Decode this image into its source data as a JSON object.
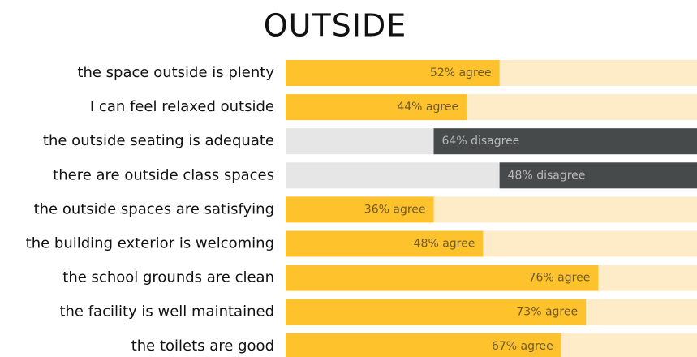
{
  "chart_data": {
    "type": "bar",
    "orientation": "horizontal",
    "title": "OUTSIDE",
    "categories": [
      "the space outside is plenty",
      "I can feel relaxed outside",
      "the outside seating is adequate",
      "there are outside class spaces",
      "the outside spaces are satisfying",
      "the building exterior is welcoming",
      "the school grounds are clean",
      "the facility is well maintained",
      "the toilets are good"
    ],
    "xlim": [
      0,
      100
    ],
    "series": [
      {
        "align": "left",
        "color": "#fec22d",
        "track_color": "#feebc8",
        "label_color": "#6e5a2a",
        "values": [
          52,
          44,
          null,
          null,
          36,
          48,
          76,
          73,
          67
        ],
        "value_labels": [
          "52% agree",
          "44% agree",
          null,
          null,
          "36% agree",
          "48% agree",
          "76% agree",
          "73% agree",
          "67% agree"
        ]
      },
      {
        "align": "right",
        "color": "#464a4b",
        "track_color": "#e6e6e6",
        "label_color": "#b8b8b8",
        "values": [
          null,
          null,
          64,
          48,
          null,
          null,
          null,
          null,
          null
        ],
        "value_labels": [
          null,
          null,
          "64% disagree",
          "48% disagree",
          null,
          null,
          null,
          null,
          null
        ]
      }
    ]
  }
}
